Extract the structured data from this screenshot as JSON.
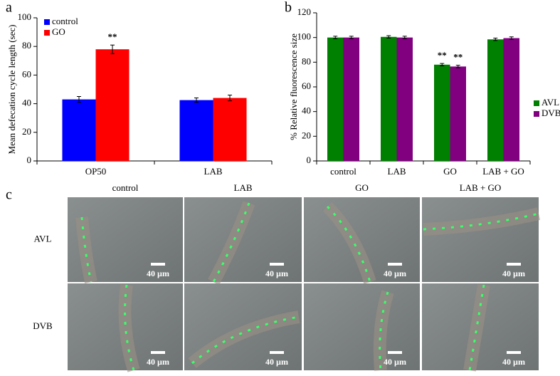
{
  "chart_data": [
    {
      "type": "bar",
      "panel_label": "a",
      "ylabel": "Mean defecation cycle length (sec)",
      "categories": [
        "OP50",
        "LAB"
      ],
      "series": [
        {
          "name": "control",
          "color": "#0000ff",
          "values": [
            43,
            42.5
          ],
          "errors": [
            2,
            1.5
          ]
        },
        {
          "name": "GO",
          "color": "#ff0000",
          "values": [
            78,
            44
          ],
          "errors": [
            3,
            2
          ]
        }
      ],
      "ylim": [
        0,
        100
      ],
      "yticks": [
        0,
        20,
        40,
        60,
        80,
        100
      ],
      "legend": "upper left",
      "annotations": [
        {
          "text": "**",
          "category": "OP50",
          "series": "GO"
        }
      ]
    },
    {
      "type": "bar",
      "panel_label": "b",
      "ylabel": "% Relative fluorescence size",
      "categories": [
        "control",
        "LAB",
        "GO",
        "LAB + GO"
      ],
      "series": [
        {
          "name": "AVL",
          "color": "#008000",
          "values": [
            100,
            100.5,
            78,
            98.5
          ],
          "errors": [
            1,
            1,
            1,
            1
          ]
        },
        {
          "name": "DVB",
          "color": "#800080",
          "values": [
            100,
            100,
            76.5,
            99.5
          ],
          "errors": [
            1,
            1,
            1,
            1
          ]
        }
      ],
      "ylim": [
        0,
        120
      ],
      "yticks": [
        0,
        20,
        40,
        60,
        80,
        100,
        120
      ],
      "legend": "right",
      "annotations": [
        {
          "text": "**",
          "category": "GO",
          "series": "AVL"
        },
        {
          "text": "**",
          "category": "GO",
          "series": "DVB"
        }
      ]
    }
  ],
  "panel_c": {
    "panel_label": "c",
    "column_labels": [
      "control",
      "LAB",
      "GO",
      "LAB + GO"
    ],
    "row_labels": [
      "AVL",
      "DVB"
    ],
    "scale_bar_label": "40 µm"
  }
}
